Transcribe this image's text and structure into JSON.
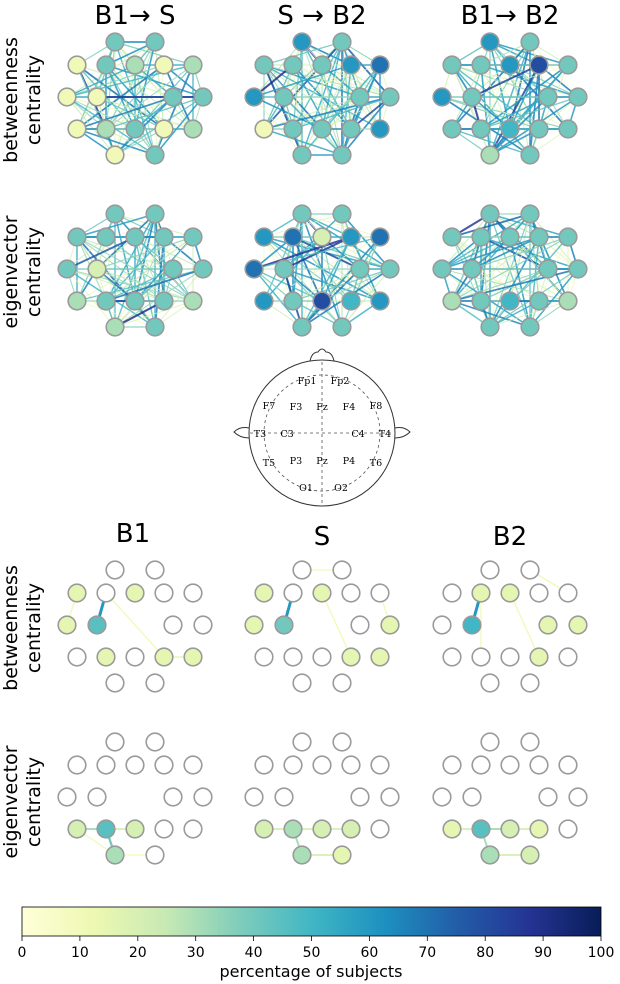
{
  "top_titles": [
    "B1→ S",
    "S → B2",
    "B1→ B2"
  ],
  "bottom_titles": [
    "B1",
    "S",
    "B2"
  ],
  "row_labels": {
    "betweenness": [
      "betweenness",
      "centrality"
    ],
    "eigenvector": [
      "eigenvector",
      "centrality"
    ]
  },
  "electrodes": [
    "Fp1",
    "Fp2",
    "F7",
    "F3",
    "Fz",
    "F4",
    "F8",
    "T3",
    "C3",
    "C4",
    "T4",
    "T5",
    "P3",
    "Pz",
    "P4",
    "T6",
    "O1",
    "O2"
  ],
  "colorbar": {
    "ticks": [
      "0",
      "10",
      "20",
      "30",
      "40",
      "50",
      "60",
      "70",
      "80",
      "90",
      "100"
    ],
    "label": "percentage of subjects",
    "colormap": "YlGnBu",
    "range": [
      0,
      100
    ]
  },
  "panels": {
    "top_betweenness": [
      {
        "values": [
          40,
          40,
          10,
          40,
          30,
          10,
          30,
          10,
          10,
          40,
          40,
          10,
          30,
          40,
          10,
          30,
          10,
          40
        ],
        "density": "high"
      },
      {
        "values": [
          60,
          40,
          40,
          40,
          40,
          60,
          70,
          60,
          40,
          40,
          40,
          10,
          40,
          40,
          40,
          60,
          40,
          40
        ],
        "density": "high"
      },
      {
        "values": [
          60,
          40,
          40,
          40,
          60,
          80,
          40,
          60,
          40,
          40,
          40,
          40,
          40,
          50,
          40,
          40,
          30,
          40
        ],
        "density": "high"
      }
    ],
    "top_eigenvector": [
      {
        "values": [
          40,
          40,
          40,
          40,
          40,
          40,
          40,
          40,
          20,
          40,
          40,
          30,
          40,
          40,
          40,
          30,
          30,
          40
        ],
        "density": "high"
      },
      {
        "values": [
          40,
          40,
          60,
          70,
          20,
          60,
          70,
          70,
          40,
          40,
          40,
          60,
          40,
          80,
          50,
          60,
          40,
          40
        ],
        "density": "high"
      },
      {
        "values": [
          40,
          40,
          40,
          40,
          40,
          40,
          40,
          40,
          40,
          40,
          40,
          30,
          40,
          50,
          40,
          30,
          40,
          40
        ],
        "density": "high"
      }
    ],
    "bottom_betweenness": [
      {
        "values": [
          0,
          0,
          15,
          0,
          15,
          0,
          0,
          15,
          45,
          0,
          0,
          0,
          15,
          0,
          15,
          15,
          0,
          0
        ],
        "edges": [
          [
            8,
            3,
            60
          ],
          [
            3,
            14,
            10
          ],
          [
            14,
            15,
            15
          ],
          [
            2,
            7,
            10
          ]
        ]
      },
      {
        "values": [
          0,
          0,
          15,
          0,
          15,
          0,
          0,
          15,
          40,
          0,
          15,
          0,
          0,
          0,
          15,
          15,
          0,
          0
        ],
        "edges": [
          [
            8,
            3,
            60
          ],
          [
            4,
            14,
            10
          ],
          [
            0,
            1,
            10
          ],
          [
            6,
            10,
            10
          ]
        ]
      },
      {
        "values": [
          0,
          0,
          0,
          15,
          15,
          0,
          0,
          0,
          50,
          15,
          15,
          0,
          0,
          0,
          15,
          0,
          0,
          0
        ],
        "edges": [
          [
            8,
            3,
            60
          ],
          [
            4,
            14,
            10
          ],
          [
            1,
            6,
            10
          ],
          [
            3,
            12,
            10
          ]
        ]
      }
    ],
    "bottom_eigenvector": [
      {
        "values": [
          0,
          0,
          0,
          0,
          0,
          0,
          0,
          0,
          0,
          0,
          0,
          20,
          45,
          20,
          0,
          0,
          30,
          0
        ],
        "edges": [
          [
            11,
            12,
            30
          ],
          [
            12,
            13,
            20
          ],
          [
            12,
            16,
            40
          ],
          [
            16,
            17,
            10
          ],
          [
            11,
            16,
            10
          ]
        ]
      },
      {
        "values": [
          0,
          0,
          0,
          0,
          0,
          0,
          0,
          0,
          0,
          0,
          0,
          20,
          30,
          20,
          20,
          0,
          30,
          15
        ],
        "edges": [
          [
            11,
            12,
            20
          ],
          [
            12,
            13,
            20
          ],
          [
            13,
            14,
            20
          ],
          [
            12,
            16,
            30
          ],
          [
            16,
            17,
            20
          ]
        ]
      },
      {
        "values": [
          0,
          0,
          0,
          0,
          0,
          0,
          0,
          0,
          0,
          0,
          0,
          15,
          45,
          20,
          15,
          0,
          30,
          20
        ],
        "edges": [
          [
            11,
            12,
            20
          ],
          [
            12,
            13,
            30
          ],
          [
            13,
            14,
            20
          ],
          [
            12,
            16,
            30
          ],
          [
            16,
            17,
            20
          ]
        ]
      }
    ]
  }
}
